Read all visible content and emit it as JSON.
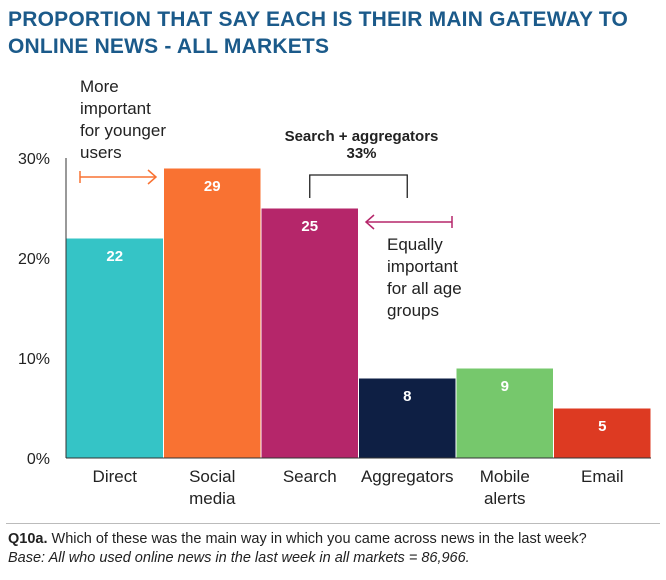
{
  "title_line1": "PROPORTION THAT SAY EACH IS THEIR MAIN GATEWAY TO",
  "title_line2": "ONLINE NEWS - ALL MARKETS",
  "chart_data": {
    "type": "bar",
    "categories": [
      "Direct",
      "Social media",
      "Search",
      "Aggregators",
      "Mobile alerts",
      "Email"
    ],
    "category_lines": [
      [
        "Direct"
      ],
      [
        "Social",
        "media"
      ],
      [
        "Search"
      ],
      [
        "Aggregators"
      ],
      [
        "Mobile",
        "alerts"
      ],
      [
        "Email"
      ]
    ],
    "values": [
      22,
      29,
      25,
      8,
      9,
      5
    ],
    "data_labels": [
      "22",
      "29",
      "25",
      "8",
      "9",
      "5"
    ],
    "colors": [
      "#35c4c6",
      "#f97232",
      "#b5266a",
      "#0e1f44",
      "#76c86c",
      "#dd3a22"
    ],
    "label_colors": [
      "#ffffff",
      "#ffffff",
      "#ffffff",
      "#ffffff",
      "#ffffff",
      "#ffffff"
    ],
    "ylim": [
      0,
      30
    ],
    "yticks": [
      0,
      10,
      20,
      30
    ],
    "ytick_labels": [
      "0%",
      "10%",
      "20%",
      "30%"
    ],
    "grid": false,
    "annotations": {
      "younger": {
        "lines": [
          "More",
          "important",
          "for younger",
          "users"
        ],
        "color": "#f97232"
      },
      "bracket": {
        "lines": [
          "Search + aggregators",
          "33%"
        ]
      },
      "equal": {
        "lines": [
          "Equally",
          "important",
          "for all age",
          "groups"
        ],
        "color": "#b5266a"
      }
    }
  },
  "footnote": {
    "q_label": "Q10a.",
    "question": " Which of these was the main way in which you came across news in the last week?",
    "base": "Base: All who used online news in the last week in all markets = 86,966."
  }
}
